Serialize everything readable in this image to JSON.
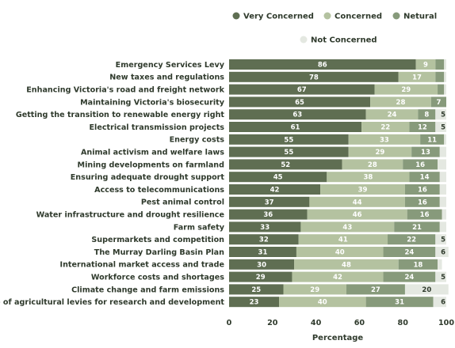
{
  "chart_data": {
    "type": "bar",
    "orientation": "horizontal",
    "stacked": true,
    "xlabel": "Percentage",
    "xlim": [
      0,
      100
    ],
    "xticks": [
      0,
      20,
      40,
      60,
      80,
      100
    ],
    "legend_position": "top-right",
    "categories": [
      "Emergency Services Levy",
      "New taxes and regulations",
      "Enhancing Victoria's road and freight network",
      "Maintaining Victoria's biosecurity",
      "Getting the transition to renewable energy right",
      "Electrical transmission projects",
      "Energy costs",
      "Animal activism and welfare laws",
      "Mining developments on farmland",
      "Ensuring adequate drought support",
      "Access to telecommunications",
      "Pest animal control",
      "Water infrastructure and drought resilience",
      "Farm safety",
      "Supermarkets and competition",
      "The Murray Darling Basin Plan",
      "International market access and trade",
      "Workforce costs and shortages",
      "Climate change and farm emissions",
      "Use of agricultural levies for research and development"
    ],
    "series": [
      {
        "name": "Very Concerned",
        "color": "#5f6e52",
        "values": [
          86,
          78,
          67,
          65,
          63,
          61,
          55,
          55,
          52,
          45,
          42,
          37,
          36,
          33,
          32,
          31,
          30,
          29,
          25,
          23
        ]
      },
      {
        "name": "Concerned",
        "color": "#b4c2a0",
        "values": [
          9,
          17,
          29,
          28,
          24,
          22,
          33,
          29,
          28,
          38,
          39,
          44,
          46,
          43,
          41,
          40,
          48,
          42,
          29,
          40
        ]
      },
      {
        "name": "Netural",
        "color": "#879a7b",
        "values": [
          4,
          4,
          3,
          7,
          8,
          12,
          11,
          13,
          16,
          14,
          16,
          16,
          16,
          21,
          22,
          24,
          18,
          24,
          27,
          31
        ]
      },
      {
        "name": "Not Concerned",
        "color": "#e4e8e1",
        "values": [
          1,
          1,
          1,
          0,
          5,
          5,
          1,
          3,
          4,
          3,
          3,
          3,
          2,
          3,
          5,
          6,
          2,
          5,
          20,
          6
        ]
      }
    ],
    "labels": [
      [
        "86",
        "9",
        "",
        ""
      ],
      [
        "78",
        "17",
        "",
        ""
      ],
      [
        "67",
        "29",
        "",
        ""
      ],
      [
        "65",
        "28",
        "7",
        ""
      ],
      [
        "63",
        "24",
        "8",
        "5"
      ],
      [
        "61",
        "22",
        "12",
        "5"
      ],
      [
        "55",
        "33",
        "11",
        ""
      ],
      [
        "55",
        "29",
        "13",
        ""
      ],
      [
        "52",
        "28",
        "16",
        ""
      ],
      [
        "45",
        "38",
        "14",
        ""
      ],
      [
        "42",
        "39",
        "16",
        ""
      ],
      [
        "37",
        "44",
        "16",
        ""
      ],
      [
        "36",
        "46",
        "16",
        ""
      ],
      [
        "33",
        "43",
        "21",
        ""
      ],
      [
        "32",
        "41",
        "22",
        "5"
      ],
      [
        "31",
        "40",
        "24",
        "6"
      ],
      [
        "30",
        "48",
        "18",
        ""
      ],
      [
        "29",
        "42",
        "24",
        "5"
      ],
      [
        "25",
        "29",
        "27",
        "20"
      ],
      [
        "23",
        "40",
        "31",
        "6"
      ]
    ]
  }
}
